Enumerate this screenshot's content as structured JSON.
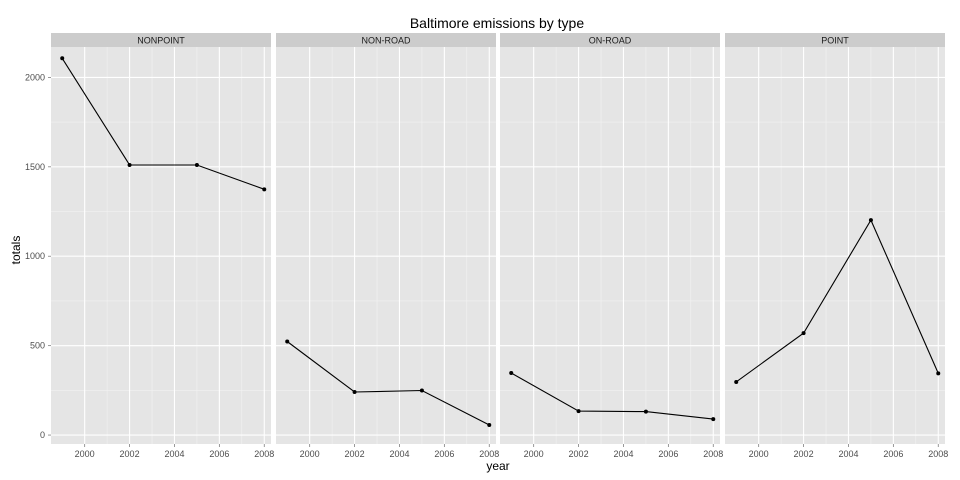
{
  "chart_data": {
    "type": "line",
    "title": "Baltimore emissions by type",
    "xlabel": "year",
    "ylabel": "totals",
    "x": [
      1999,
      2002,
      2005,
      2008
    ],
    "x_ticks": [
      2000,
      2002,
      2004,
      2006,
      2008
    ],
    "y_ticks": [
      0,
      500,
      1000,
      1500,
      2000
    ],
    "xlim": [
      1998.5,
      2008.3
    ],
    "ylim": [
      -50,
      2170
    ],
    "grid": true,
    "series": [
      {
        "name": "NONPOINT",
        "values": [
          2107,
          1510,
          1510,
          1374
        ]
      },
      {
        "name": "NON-ROAD",
        "values": [
          523,
          241,
          249,
          56
        ]
      },
      {
        "name": "ON-ROAD",
        "values": [
          347,
          134,
          131,
          89
        ]
      },
      {
        "name": "POINT",
        "values": [
          297,
          570,
          1202,
          345
        ]
      }
    ]
  }
}
